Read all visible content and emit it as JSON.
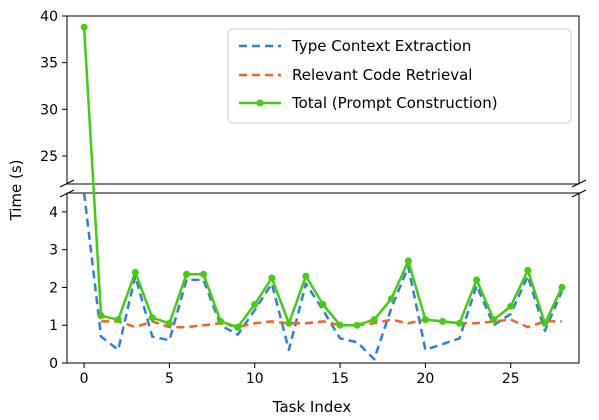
{
  "chart_data": {
    "type": "line",
    "xlabel": "Task Index",
    "ylabel": "Time (s)",
    "x": [
      0,
      1,
      2,
      3,
      4,
      5,
      6,
      7,
      8,
      9,
      10,
      11,
      12,
      13,
      14,
      15,
      16,
      17,
      18,
      19,
      20,
      21,
      22,
      23,
      24,
      25,
      26,
      27,
      28
    ],
    "xlim": [
      -1,
      29
    ],
    "xticks": [
      "0",
      "5",
      "10",
      "15",
      "20",
      "25"
    ],
    "broken_y_axis": true,
    "ylim_lower": [
      0,
      4.5
    ],
    "ylim_upper": [
      22,
      40
    ],
    "yticks_lower": [
      "0",
      "1",
      "2",
      "3",
      "4"
    ],
    "yticks_upper": [
      "25",
      "30",
      "35",
      "40"
    ],
    "legend_position": "top-right",
    "series": [
      {
        "name": "Type Context Extraction",
        "color": "#2f7ed8",
        "style": "dashed",
        "marker": "none",
        "values": [
          4.5,
          0.7,
          0.35,
          2.3,
          0.7,
          0.6,
          2.2,
          2.2,
          1.0,
          0.75,
          1.4,
          2.1,
          0.35,
          2.1,
          1.4,
          0.65,
          0.55,
          0.1,
          1.45,
          2.55,
          0.35,
          0.5,
          0.65,
          2.05,
          1.0,
          1.3,
          2.3,
          0.85,
          1.9
        ]
      },
      {
        "name": "Relevant Code Retrieval",
        "color": "#f2612d",
        "style": "dashed",
        "marker": "none",
        "values": [
          null,
          1.1,
          1.1,
          0.95,
          1.1,
          0.95,
          0.95,
          1.0,
          1.05,
          0.95,
          1.05,
          1.1,
          1.05,
          1.05,
          1.1,
          1.0,
          1.0,
          1.05,
          1.15,
          1.05,
          1.15,
          1.1,
          1.05,
          1.05,
          1.1,
          1.15,
          0.95,
          1.1,
          1.1
        ]
      },
      {
        "name": "Total (Prompt Construction)",
        "color": "#44cc11",
        "style": "solid",
        "marker": "circle",
        "values": [
          38.8,
          1.25,
          1.15,
          2.4,
          1.2,
          1.05,
          2.35,
          2.35,
          1.1,
          0.95,
          1.55,
          2.25,
          1.05,
          2.3,
          1.55,
          1.0,
          1.0,
          1.15,
          1.7,
          2.7,
          1.15,
          1.1,
          1.05,
          2.2,
          1.15,
          1.5,
          2.45,
          1.05,
          2.0
        ]
      }
    ]
  }
}
